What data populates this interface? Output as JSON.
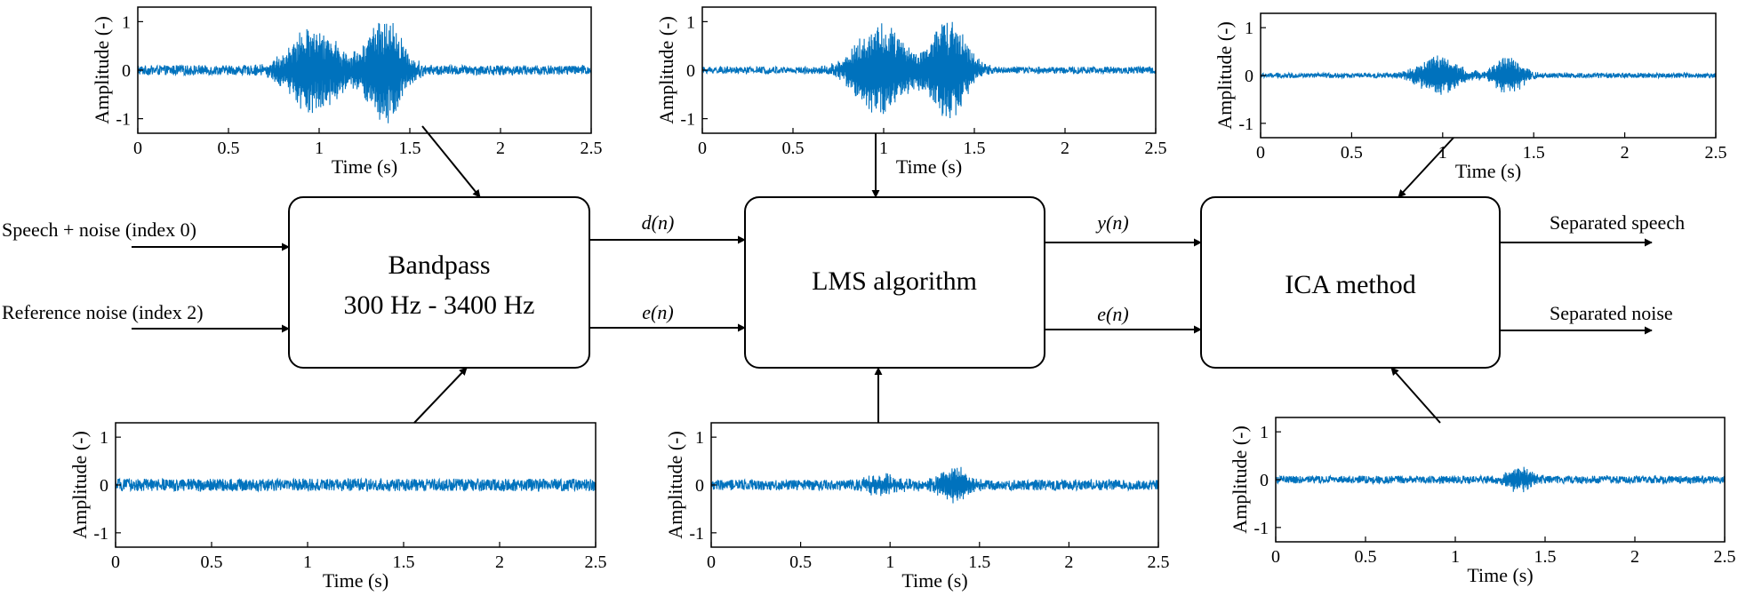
{
  "blocks": {
    "bandpass": {
      "line1": "Bandpass",
      "line2": "300 Hz - 3400 Hz"
    },
    "lms": {
      "label": "LMS algorithm"
    },
    "ica": {
      "label": "ICA method"
    }
  },
  "inputs": {
    "speech_noise": "Speech + noise (index 0)",
    "reference_noise": "Reference noise (index 2)"
  },
  "outputs": {
    "separated_speech": "Separated speech",
    "separated_noise": "Separated noise"
  },
  "signals": {
    "bp_to_lms_top": "d(n)",
    "bp_to_lms_bottom": "e(n)",
    "lms_to_ica_top": "y(n)",
    "lms_to_ica_bottom": "e(n)"
  },
  "colors": {
    "waveform": "#0072BD",
    "line": "#000000"
  },
  "chart_data": [
    {
      "id": "plot-top-1",
      "type": "line",
      "title": "",
      "xlabel": "Time (s)",
      "ylabel": "Amplitude (-)",
      "xlim": [
        0,
        2.5
      ],
      "ylim": [
        -1.3,
        1.3
      ],
      "xticks": [
        "0",
        "0.5",
        "1",
        "1.5",
        "2",
        "2.5"
      ],
      "yticks": [
        "-1",
        "0",
        "1"
      ],
      "signal": {
        "noise_amplitude": 0.1,
        "bursts": [
          {
            "center": 0.97,
            "width": 0.12,
            "amplitude": 0.9
          },
          {
            "center": 1.36,
            "width": 0.09,
            "amplitude": 1.05
          }
        ]
      }
    },
    {
      "id": "plot-top-2",
      "type": "line",
      "title": "",
      "xlabel": "Time (s)",
      "ylabel": "Amplitude (-)",
      "xlim": [
        0,
        2.5
      ],
      "ylim": [
        -1.3,
        1.3
      ],
      "xticks": [
        "0",
        "0.5",
        "1",
        "1.5",
        "2",
        "2.5"
      ],
      "yticks": [
        "-1",
        "0",
        "1"
      ],
      "signal": {
        "noise_amplitude": 0.07,
        "bursts": [
          {
            "center": 0.98,
            "width": 0.12,
            "amplitude": 0.95
          },
          {
            "center": 1.36,
            "width": 0.09,
            "amplitude": 1.0
          }
        ]
      }
    },
    {
      "id": "plot-top-3",
      "type": "line",
      "title": "",
      "xlabel": "Time (s)",
      "ylabel": "Amplitude (-)",
      "xlim": [
        0,
        2.5
      ],
      "ylim": [
        -1.3,
        1.3
      ],
      "xticks": [
        "0",
        "0.5",
        "1",
        "1.5",
        "2",
        "2.5"
      ],
      "yticks": [
        "-1",
        "0",
        "1"
      ],
      "signal": {
        "noise_amplitude": 0.05,
        "bursts": [
          {
            "center": 0.98,
            "width": 0.1,
            "amplitude": 0.4
          },
          {
            "center": 1.36,
            "width": 0.07,
            "amplitude": 0.4
          }
        ]
      }
    },
    {
      "id": "plot-bottom-1",
      "type": "line",
      "title": "",
      "xlabel": "Time (s)",
      "ylabel": "Amplitude (-)",
      "xlim": [
        0,
        2.5
      ],
      "ylim": [
        -1.3,
        1.3
      ],
      "xticks": [
        "0",
        "0.5",
        "1",
        "1.5",
        "2",
        "2.5"
      ],
      "yticks": [
        "-1",
        "0",
        "1"
      ],
      "signal": {
        "noise_amplitude": 0.13,
        "bursts": []
      }
    },
    {
      "id": "plot-bottom-2",
      "type": "line",
      "title": "",
      "xlabel": "Time (s)",
      "ylabel": "Amplitude (-)",
      "xlim": [
        0,
        2.5
      ],
      "ylim": [
        -1.3,
        1.3
      ],
      "xticks": [
        "0",
        "0.5",
        "1",
        "1.5",
        "2",
        "2.5"
      ],
      "yticks": [
        "-1",
        "0",
        "1"
      ],
      "signal": {
        "noise_amplitude": 0.11,
        "bursts": [
          {
            "center": 0.97,
            "width": 0.1,
            "amplitude": 0.15
          },
          {
            "center": 1.36,
            "width": 0.07,
            "amplitude": 0.35
          }
        ]
      }
    },
    {
      "id": "plot-bottom-3",
      "type": "line",
      "title": "",
      "xlabel": "Time (s)",
      "ylabel": "Amplitude (-)",
      "xlim": [
        0,
        2.5
      ],
      "ylim": [
        -1.3,
        1.3
      ],
      "xticks": [
        "0",
        "0.5",
        "1",
        "1.5",
        "2",
        "2.5"
      ],
      "yticks": [
        "-1",
        "0",
        "1"
      ],
      "signal": {
        "noise_amplitude": 0.08,
        "bursts": [
          {
            "center": 1.36,
            "width": 0.06,
            "amplitude": 0.25
          }
        ]
      }
    }
  ]
}
